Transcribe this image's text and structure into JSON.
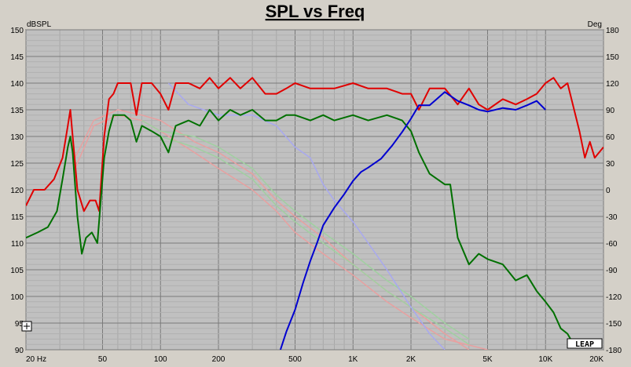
{
  "chart_data": {
    "type": "line",
    "title": "SPL vs Freq",
    "y_left_unit": "dBSPL",
    "y_right_unit": "Deg",
    "x_scale": "log",
    "xlim": [
      20,
      20000
    ],
    "ylim": [
      90,
      150
    ],
    "ylim_right": [
      -180,
      180
    ],
    "grid": true,
    "x_ticks": [
      {
        "v": 20,
        "label": "20  Hz"
      },
      {
        "v": 50,
        "label": "50"
      },
      {
        "v": 100,
        "label": "100"
      },
      {
        "v": 200,
        "label": "200"
      },
      {
        "v": 500,
        "label": "500"
      },
      {
        "v": 1000,
        "label": "1K"
      },
      {
        "v": 2000,
        "label": "2K"
      },
      {
        "v": 5000,
        "label": "5K"
      },
      {
        "v": 10000,
        "label": "10K"
      },
      {
        "v": 20000,
        "label": "20K"
      }
    ],
    "y_ticks": [
      90,
      95,
      100,
      105,
      110,
      115,
      120,
      125,
      130,
      135,
      140,
      145,
      150
    ],
    "y_right_ticks": [
      -180,
      -150,
      -120,
      -90,
      -60,
      -30,
      0,
      30,
      60,
      90,
      120,
      150,
      180
    ],
    "series": [
      {
        "color": "#e8a0a0",
        "width": 1.5,
        "axis": "left",
        "points": [
          [
            36,
            124
          ],
          [
            45,
            132
          ],
          [
            60,
            134
          ],
          [
            80,
            133
          ],
          [
            100,
            131
          ],
          [
            150,
            127
          ],
          [
            200,
            124
          ],
          [
            300,
            120
          ],
          [
            400,
            116
          ],
          [
            500,
            112
          ],
          [
            700,
            108
          ],
          [
            1000,
            104
          ],
          [
            1500,
            99
          ],
          [
            2000,
            96
          ],
          [
            3000,
            92
          ],
          [
            5000,
            90
          ]
        ]
      },
      {
        "color": "#e8a0a0",
        "width": 1.5,
        "axis": "left",
        "points": [
          [
            36,
            126
          ],
          [
            45,
            133
          ],
          [
            60,
            135
          ],
          [
            80,
            134
          ],
          [
            100,
            133
          ],
          [
            150,
            129
          ],
          [
            200,
            127
          ],
          [
            300,
            123
          ],
          [
            400,
            118
          ],
          [
            500,
            115
          ],
          [
            700,
            111
          ],
          [
            1000,
            106
          ],
          [
            1500,
            101
          ],
          [
            2000,
            98
          ],
          [
            3000,
            93
          ],
          [
            4000,
            90
          ]
        ]
      },
      {
        "color": "#a0d0a0",
        "width": 1.5,
        "axis": "left",
        "points": [
          [
            80,
            132
          ],
          [
            100,
            130
          ],
          [
            150,
            128
          ],
          [
            200,
            126
          ],
          [
            300,
            122
          ],
          [
            400,
            117
          ],
          [
            500,
            114
          ],
          [
            700,
            110
          ],
          [
            1000,
            106
          ],
          [
            1500,
            101
          ],
          [
            2000,
            98
          ],
          [
            3000,
            94
          ],
          [
            4000,
            91
          ]
        ]
      },
      {
        "color": "#a0d0a0",
        "width": 1.5,
        "axis": "left",
        "points": [
          [
            80,
            133
          ],
          [
            100,
            131
          ],
          [
            150,
            130
          ],
          [
            200,
            128
          ],
          [
            300,
            124
          ],
          [
            400,
            119
          ],
          [
            500,
            116
          ],
          [
            700,
            112
          ],
          [
            1000,
            108
          ],
          [
            1500,
            103
          ],
          [
            2000,
            100
          ],
          [
            3000,
            95
          ],
          [
            4000,
            92
          ]
        ]
      },
      {
        "color": "#a8a8f0",
        "width": 1.5,
        "axis": "left",
        "points": [
          [
            110,
            140
          ],
          [
            140,
            136
          ],
          [
            200,
            134
          ],
          [
            300,
            134
          ],
          [
            400,
            132
          ],
          [
            500,
            128
          ],
          [
            600,
            126
          ],
          [
            700,
            121
          ],
          [
            800,
            118
          ],
          [
            1000,
            114
          ],
          [
            1200,
            110
          ],
          [
            1500,
            105
          ],
          [
            2000,
            98
          ],
          [
            2500,
            93
          ],
          [
            3000,
            90
          ]
        ]
      },
      {
        "color": "#e00000",
        "width": 2,
        "axis": "left",
        "points": [
          [
            20,
            117
          ],
          [
            22,
            120
          ],
          [
            25,
            120
          ],
          [
            28,
            122
          ],
          [
            31,
            126
          ],
          [
            33,
            132
          ],
          [
            34,
            135
          ],
          [
            35,
            130
          ],
          [
            37,
            120
          ],
          [
            40,
            116
          ],
          [
            43,
            118
          ],
          [
            46,
            118
          ],
          [
            48,
            116
          ],
          [
            51,
            130
          ],
          [
            54,
            137
          ],
          [
            57,
            138
          ],
          [
            60,
            140
          ],
          [
            65,
            140
          ],
          [
            70,
            140
          ],
          [
            75,
            134
          ],
          [
            80,
            140
          ],
          [
            90,
            140
          ],
          [
            100,
            138
          ],
          [
            110,
            135
          ],
          [
            120,
            140
          ],
          [
            140,
            140
          ],
          [
            160,
            139
          ],
          [
            180,
            141
          ],
          [
            200,
            139
          ],
          [
            230,
            141
          ],
          [
            260,
            139
          ],
          [
            300,
            141
          ],
          [
            350,
            138
          ],
          [
            400,
            138
          ],
          [
            450,
            139
          ],
          [
            500,
            140
          ],
          [
            600,
            139
          ],
          [
            700,
            139
          ],
          [
            800,
            139
          ],
          [
            1000,
            140
          ],
          [
            1200,
            139
          ],
          [
            1500,
            139
          ],
          [
            1800,
            138
          ],
          [
            2000,
            138
          ],
          [
            2200,
            135
          ],
          [
            2500,
            139
          ],
          [
            3000,
            139
          ],
          [
            3500,
            136
          ],
          [
            4000,
            139
          ],
          [
            4500,
            136
          ],
          [
            5000,
            135
          ],
          [
            6000,
            137
          ],
          [
            7000,
            136
          ],
          [
            8000,
            137
          ],
          [
            9000,
            138
          ],
          [
            10000,
            140
          ],
          [
            11000,
            141
          ],
          [
            12000,
            139
          ],
          [
            13000,
            140
          ],
          [
            15000,
            131
          ],
          [
            16000,
            126
          ],
          [
            17000,
            129
          ],
          [
            18000,
            126
          ],
          [
            20000,
            128
          ]
        ]
      },
      {
        "color": "#007000",
        "width": 2,
        "axis": "left",
        "points": [
          [
            20,
            111
          ],
          [
            23,
            112
          ],
          [
            26,
            113
          ],
          [
            29,
            116
          ],
          [
            31,
            122
          ],
          [
            33,
            128
          ],
          [
            34,
            130
          ],
          [
            35,
            127
          ],
          [
            37,
            115
          ],
          [
            39,
            108
          ],
          [
            41,
            111
          ],
          [
            44,
            112
          ],
          [
            47,
            110
          ],
          [
            51,
            126
          ],
          [
            54,
            131
          ],
          [
            57,
            134
          ],
          [
            60,
            134
          ],
          [
            65,
            134
          ],
          [
            70,
            133
          ],
          [
            75,
            129
          ],
          [
            80,
            132
          ],
          [
            90,
            131
          ],
          [
            100,
            130
          ],
          [
            110,
            127
          ],
          [
            120,
            132
          ],
          [
            140,
            133
          ],
          [
            160,
            132
          ],
          [
            180,
            135
          ],
          [
            200,
            133
          ],
          [
            230,
            135
          ],
          [
            260,
            134
          ],
          [
            300,
            135
          ],
          [
            350,
            133
          ],
          [
            400,
            133
          ],
          [
            450,
            134
          ],
          [
            500,
            134
          ],
          [
            600,
            133
          ],
          [
            700,
            134
          ],
          [
            800,
            133
          ],
          [
            1000,
            134
          ],
          [
            1200,
            133
          ],
          [
            1500,
            134
          ],
          [
            1800,
            133
          ],
          [
            2000,
            131
          ],
          [
            2200,
            127
          ],
          [
            2500,
            123
          ],
          [
            3000,
            121
          ],
          [
            3200,
            121
          ],
          [
            3500,
            111
          ],
          [
            4000,
            106
          ],
          [
            4500,
            108
          ],
          [
            5000,
            107
          ],
          [
            6000,
            106
          ],
          [
            7000,
            103
          ],
          [
            8000,
            104
          ],
          [
            9000,
            101
          ],
          [
            10000,
            99
          ],
          [
            11000,
            97
          ],
          [
            12000,
            94
          ],
          [
            13000,
            93
          ],
          [
            14000,
            91
          ]
        ]
      },
      {
        "color": "#0000d0",
        "width": 2,
        "axis": "right",
        "points": [
          [
            420,
            -180
          ],
          [
            450,
            -160
          ],
          [
            500,
            -135
          ],
          [
            550,
            -105
          ],
          [
            600,
            -80
          ],
          [
            650,
            -60
          ],
          [
            700,
            -40
          ],
          [
            800,
            -20
          ],
          [
            900,
            -5
          ],
          [
            1000,
            10
          ],
          [
            1100,
            20
          ],
          [
            1200,
            25
          ],
          [
            1400,
            35
          ],
          [
            1600,
            50
          ],
          [
            1800,
            65
          ],
          [
            2000,
            80
          ],
          [
            2200,
            95
          ],
          [
            2500,
            95
          ],
          [
            3000,
            110
          ],
          [
            3500,
            100
          ],
          [
            4000,
            95
          ],
          [
            4500,
            90
          ],
          [
            5000,
            88
          ],
          [
            6000,
            92
          ],
          [
            7000,
            90
          ],
          [
            8000,
            95
          ],
          [
            9000,
            100
          ],
          [
            10000,
            90
          ]
        ]
      }
    ]
  }
}
